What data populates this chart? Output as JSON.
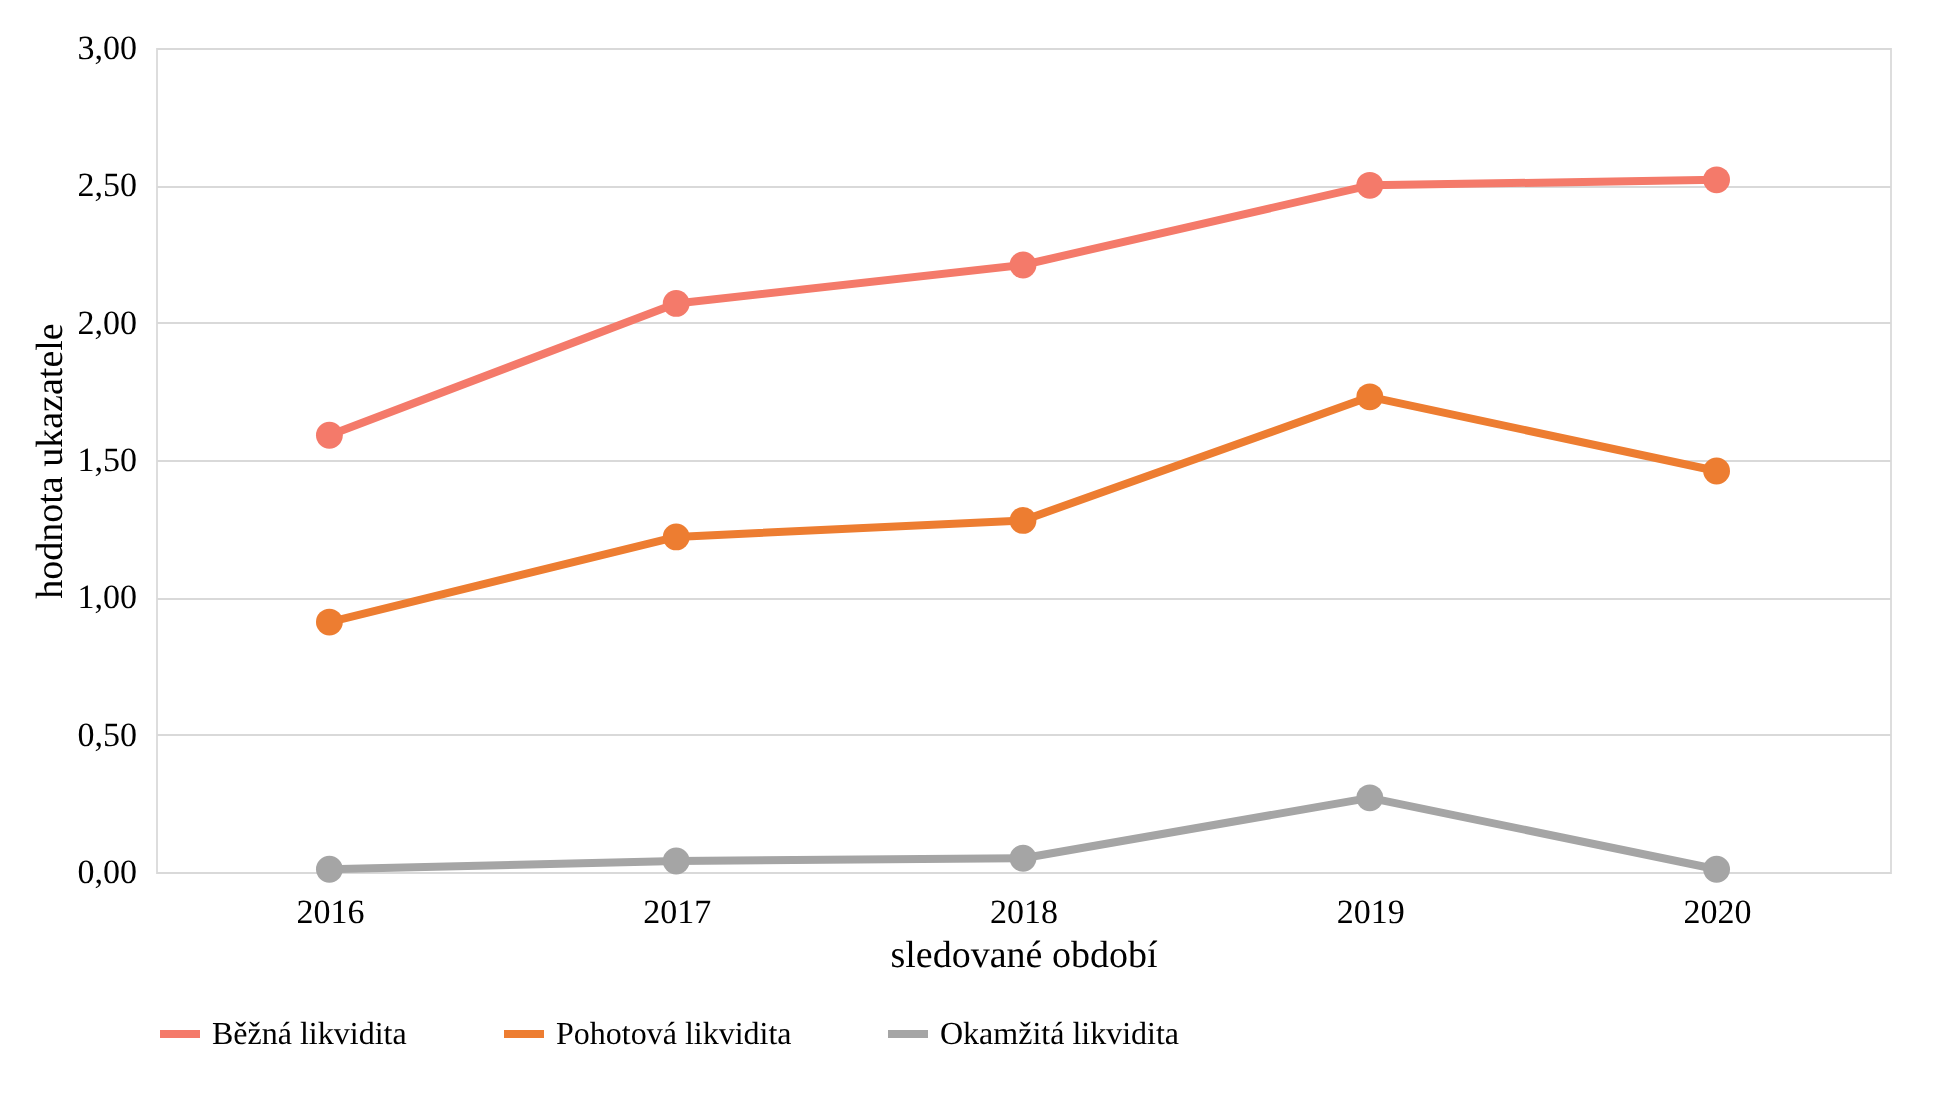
{
  "chart_data": {
    "type": "line",
    "xlabel": "sledované období",
    "ylabel": "hodnota ukazatele",
    "categories": [
      "2016",
      "2017",
      "2018",
      "2019",
      "2020"
    ],
    "series": [
      {
        "name": "Běžná likvidita",
        "color": "#f47a6a",
        "values": [
          1.59,
          2.07,
          2.21,
          2.5,
          2.52
        ]
      },
      {
        "name": "Pohotová likvidita",
        "color": "#ed7d31",
        "values": [
          0.91,
          1.22,
          1.28,
          1.73,
          1.46
        ]
      },
      {
        "name": "Okamžitá likvidita",
        "color": "#a5a5a5",
        "values": [
          0.01,
          0.04,
          0.05,
          0.27,
          0.01
        ]
      }
    ],
    "ylim": [
      0,
      3
    ],
    "yticks": [
      {
        "value": 0,
        "label": "0,00"
      },
      {
        "value": 0.5,
        "label": "0,50"
      },
      {
        "value": 1,
        "label": "1,00"
      },
      {
        "value": 1.5,
        "label": "1,50"
      },
      {
        "value": 2,
        "label": "2,00"
      },
      {
        "value": 2.5,
        "label": "2,50"
      },
      {
        "value": 3,
        "label": "3,00"
      }
    ],
    "grid": "y",
    "legend": "bottom",
    "marker": "circle",
    "line_style": "solid"
  }
}
